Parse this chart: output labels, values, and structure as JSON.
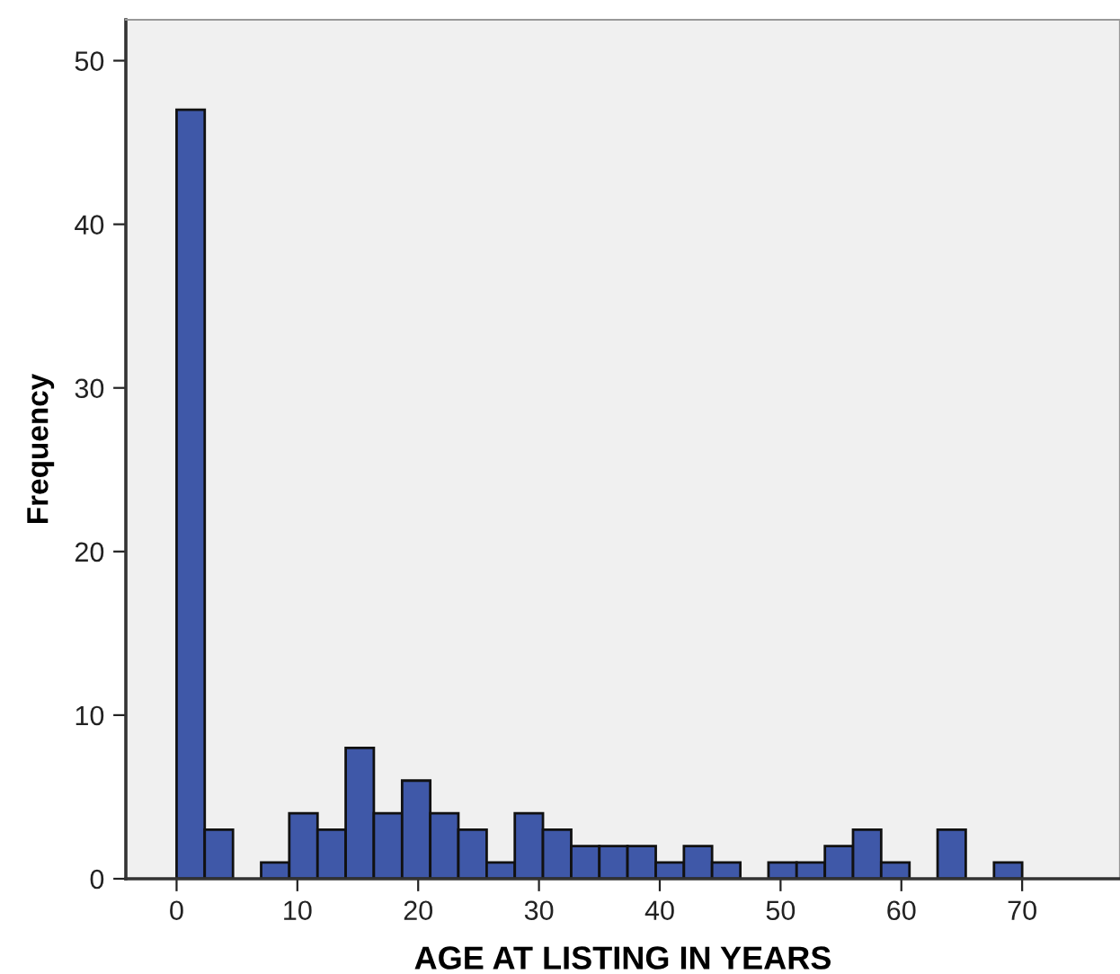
{
  "chart_data": {
    "type": "histogram",
    "xlabel": "AGE AT LISTING IN YEARS",
    "ylabel": "Frequency",
    "bins": [
      0,
      2.33,
      4.67,
      7,
      9.33,
      11.67,
      14,
      16.33,
      18.67,
      21,
      23.33,
      25.67,
      28,
      30.33,
      32.67,
      35,
      37.33,
      39.67,
      42,
      44.33,
      46.67,
      49,
      51.33,
      53.67,
      56,
      58.33,
      60.67,
      63,
      65.33,
      67.67,
      70
    ],
    "values": [
      47,
      3,
      0,
      1,
      4,
      3,
      8,
      4,
      6,
      4,
      3,
      1,
      4,
      3,
      2,
      2,
      2,
      1,
      2,
      1,
      0,
      1,
      1,
      2,
      3,
      1,
      0,
      3,
      0,
      1
    ],
    "color": "#3f58a8",
    "xlim": [
      -4.2,
      78.1
    ],
    "ylim": [
      0,
      52.5
    ],
    "xticks": [
      0,
      10,
      20,
      30,
      40,
      50,
      60,
      70
    ],
    "yticks": [
      0,
      10,
      20,
      30,
      40,
      50
    ],
    "grid": false
  }
}
